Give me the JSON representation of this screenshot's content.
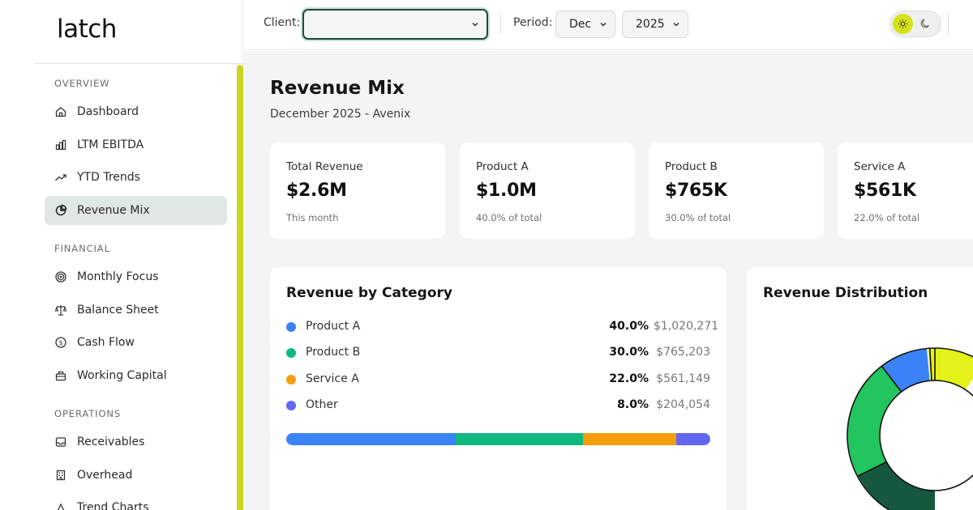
{
  "app": {
    "logo": "latch"
  },
  "sidebar": {
    "sections": [
      {
        "label": "OVERVIEW",
        "items": [
          {
            "label": "Dashboard",
            "icon": "home-icon"
          },
          {
            "label": "LTM EBITDA",
            "icon": "bar-chart-icon"
          },
          {
            "label": "YTD Trends",
            "icon": "trending-up-icon"
          },
          {
            "label": "Revenue Mix",
            "icon": "pie-chart-icon",
            "active": true
          }
        ]
      },
      {
        "label": "FINANCIAL",
        "items": [
          {
            "label": "Monthly Focus",
            "icon": "target-icon"
          },
          {
            "label": "Balance Sheet",
            "icon": "scale-icon"
          },
          {
            "label": "Cash Flow",
            "icon": "dollar-circle-icon"
          },
          {
            "label": "Working Capital",
            "icon": "briefcase-icon"
          }
        ]
      },
      {
        "label": "OPERATIONS",
        "items": [
          {
            "label": "Receivables",
            "icon": "inbox-icon"
          },
          {
            "label": "Overhead",
            "icon": "building-icon"
          },
          {
            "label": "Trend Charts",
            "icon": "chart-icon"
          }
        ]
      }
    ]
  },
  "topbar": {
    "client_label": "Client:",
    "client_value": "",
    "period_label": "Period:",
    "month_value": "Dec",
    "year_value": "2025"
  },
  "page": {
    "title": "Revenue Mix",
    "subtitle": "December 2025 - Avenix"
  },
  "kpis": [
    {
      "label": "Total Revenue",
      "value": "$2.6M",
      "note": "This month"
    },
    {
      "label": "Product A",
      "value": "$1.0M",
      "note": "40.0% of total"
    },
    {
      "label": "Product B",
      "value": "$765K",
      "note": "30.0% of total"
    },
    {
      "label": "Service A",
      "value": "$561K",
      "note": "22.0% of total"
    }
  ],
  "revenue_by_category": {
    "title": "Revenue by Category",
    "rows": [
      {
        "name": "Product A",
        "pct": "40.0%",
        "amount": "$1,020,271",
        "share": 0.4,
        "color": "#3b82f6"
      },
      {
        "name": "Product B",
        "pct": "30.0%",
        "amount": "$765,203",
        "share": 0.3,
        "color": "#10b981"
      },
      {
        "name": "Service A",
        "pct": "22.0%",
        "amount": "$561,149",
        "share": 0.22,
        "color": "#f59e0b"
      },
      {
        "name": "Other",
        "pct": "8.0%",
        "amount": "$204,054",
        "share": 0.08,
        "color": "#6366f1"
      }
    ]
  },
  "revenue_distribution": {
    "title": "Revenue Distribution",
    "colors": {
      "dark": "#16583e",
      "green": "#22c55e",
      "blue": "#3b82f6",
      "lime": "#e4f21c"
    }
  },
  "theme": {
    "accent": "#d4e21c",
    "brand_dark": "#1d4d3a"
  }
}
